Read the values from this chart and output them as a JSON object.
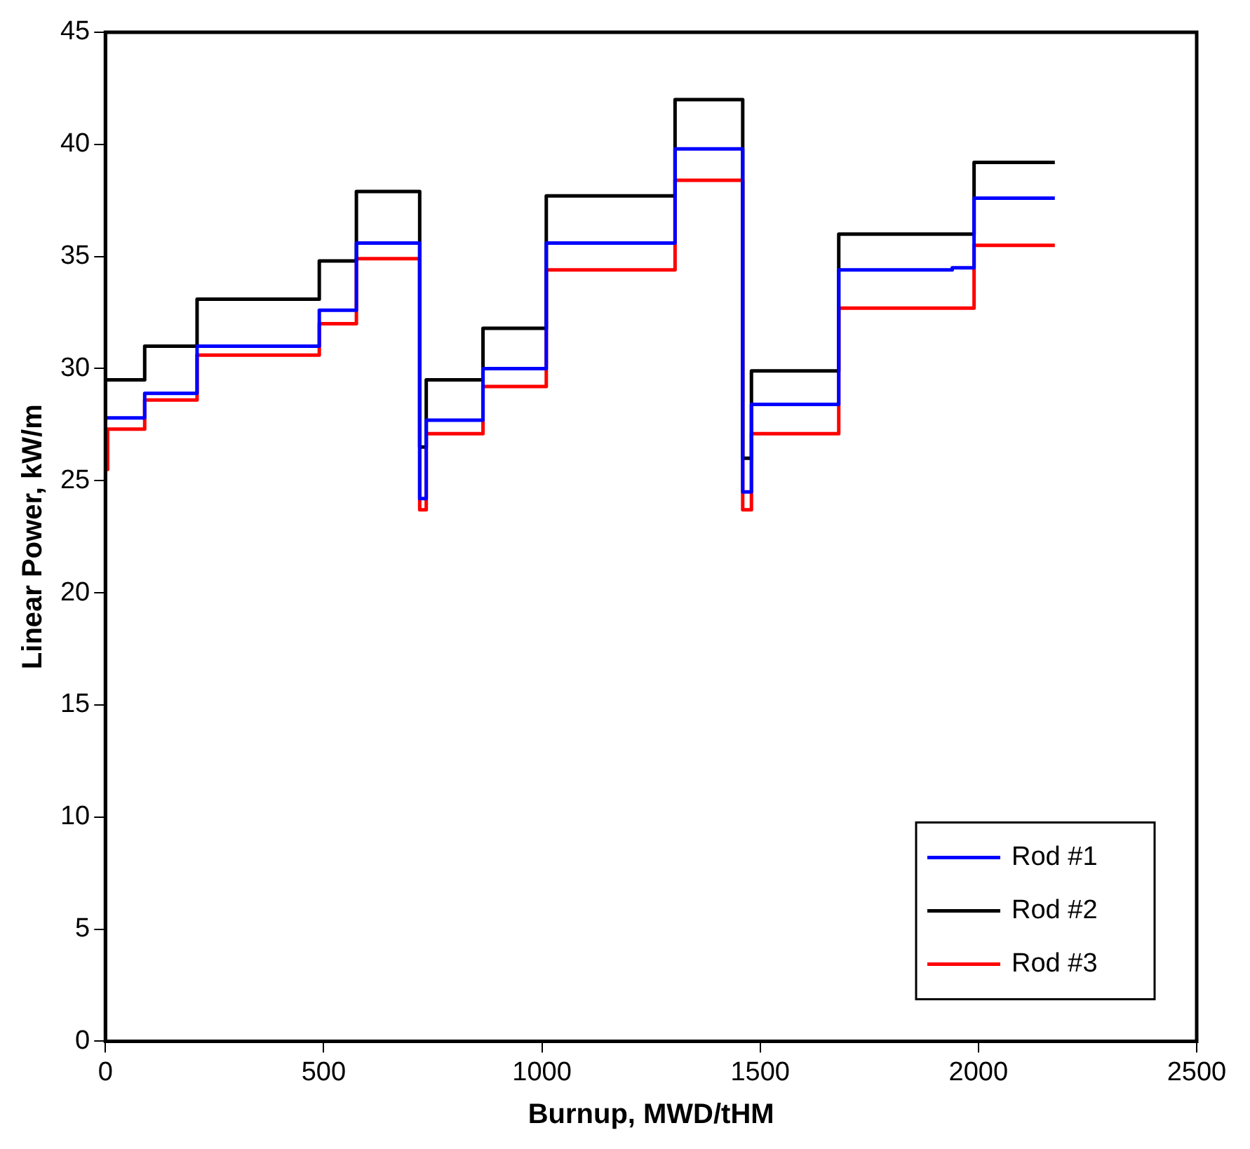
{
  "chart_data": {
    "type": "step",
    "xlabel": "Burnup, MWD/tHM",
    "ylabel": "Linear Power, kW/m",
    "xlim": [
      0,
      2500
    ],
    "xticks": [
      0,
      500,
      1000,
      1500,
      2000,
      2500
    ],
    "ylim": [
      0,
      45
    ],
    "yticks": [
      0,
      5,
      10,
      15,
      20,
      25,
      30,
      35,
      40,
      45
    ],
    "grid": false,
    "legend": "bottom right",
    "marker": "none",
    "line_style": "solid",
    "series": [
      {
        "name": "Rod #1",
        "color": "#0000ff",
        "x": [
          0,
          90,
          210,
          490,
          575,
          720,
          735,
          865,
          1010,
          1305,
          1460,
          1480,
          1680,
          1940,
          1990,
          2175
        ],
        "values": [
          27.8,
          28.9,
          31.0,
          32.6,
          35.6,
          24.2,
          27.7,
          30.0,
          35.6,
          39.8,
          24.5,
          28.4,
          34.4,
          34.5,
          37.6,
          37.6
        ]
      },
      {
        "name": "Rod #2",
        "color": "#000000",
        "x": [
          0,
          90,
          210,
          490,
          575,
          720,
          735,
          865,
          1010,
          1305,
          1460,
          1480,
          1680,
          1990,
          2175
        ],
        "values": [
          29.5,
          31.0,
          33.1,
          34.8,
          37.9,
          26.5,
          29.5,
          31.8,
          37.7,
          42.0,
          26.0,
          29.9,
          36.0,
          39.2,
          39.2
        ]
      },
      {
        "name": "Rod #3",
        "color": "#ff0000",
        "x": [
          0,
          5,
          90,
          210,
          490,
          575,
          720,
          735,
          865,
          1010,
          1305,
          1460,
          1480,
          1680,
          1990,
          2175
        ],
        "values": [
          25.5,
          27.3,
          28.6,
          30.6,
          32.0,
          34.9,
          23.7,
          27.1,
          29.2,
          34.4,
          38.4,
          23.7,
          27.1,
          32.7,
          35.5,
          35.5
        ]
      }
    ]
  }
}
